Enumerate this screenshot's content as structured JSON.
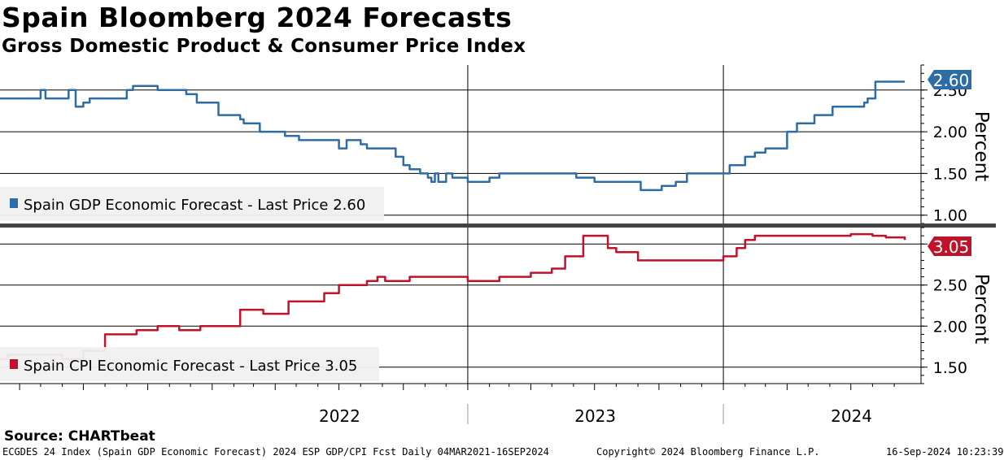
{
  "header": {
    "title": "Spain Bloomberg 2024 Forecasts",
    "subtitle": "Gross Domestic Product & Consumer Price Index"
  },
  "footer": {
    "source": "Source: CHARTbeat",
    "ticker_info": "ECGDES 24 Index (Spain GDP Economic Forecast) 2024 ESP GDP/CPI Fcst  Daily 04MAR2021-16SEP2024",
    "copyright": "Copyright© 2024 Bloomberg Finance L.P.",
    "timestamp": "16-Sep-2024 10:23:39"
  },
  "chart_data": [
    {
      "type": "line",
      "title": "",
      "ylabel": "Percent",
      "ylim": [
        0.9,
        2.8
      ],
      "yticks": [
        "1.00",
        "1.50",
        "2.00",
        "2.50"
      ],
      "legend": "Spain GDP Economic Forecast - Last Price 2.60",
      "legend_position": "bottom-left",
      "last_value_label": "2.60",
      "color": "#2d6ca5",
      "grid": true,
      "series": [
        {
          "name": "Spain GDP Economic Forecast",
          "x": [
            "2021-03-04",
            "2021-05-01",
            "2021-05-08",
            "2021-06-10",
            "2021-06-20",
            "2021-07-01",
            "2021-07-10",
            "2021-09-01",
            "2021-09-10",
            "2021-10-15",
            "2021-11-25",
            "2021-12-10",
            "2022-01-10",
            "2022-02-10",
            "2022-02-15",
            "2022-03-10",
            "2022-04-15",
            "2022-05-05",
            "2022-05-25",
            "2022-06-15",
            "2022-07-01",
            "2022-07-12",
            "2022-08-01",
            "2022-08-10",
            "2022-09-20",
            "2022-10-01",
            "2022-10-10",
            "2022-10-25",
            "2022-10-30",
            "2022-11-05",
            "2022-11-10",
            "2022-11-15",
            "2022-11-20",
            "2022-12-01",
            "2022-12-10",
            "2022-12-20",
            "2023-01-01",
            "2023-01-10",
            "2023-01-20",
            "2023-02-01",
            "2023-02-05",
            "2023-02-15",
            "2023-03-01",
            "2023-05-01",
            "2023-06-01",
            "2023-06-05",
            "2023-07-01",
            "2023-07-15",
            "2023-09-05",
            "2023-10-05",
            "2023-10-25",
            "2023-11-10",
            "2023-11-20",
            "2023-12-10",
            "2024-01-10",
            "2024-01-20",
            "2024-02-01",
            "2024-02-15",
            "2024-03-01",
            "2024-04-01",
            "2024-04-15",
            "2024-05-10",
            "2024-06-05",
            "2024-06-20",
            "2024-07-05",
            "2024-07-20",
            "2024-07-25",
            "2024-08-05",
            "2024-09-16"
          ],
          "values": [
            2.4,
            2.5,
            2.4,
            2.5,
            2.3,
            2.35,
            2.4,
            2.5,
            2.55,
            2.5,
            2.45,
            2.35,
            2.2,
            2.15,
            2.1,
            2.0,
            1.95,
            1.9,
            1.9,
            1.9,
            1.8,
            1.9,
            1.85,
            1.8,
            1.7,
            1.6,
            1.55,
            1.5,
            1.5,
            1.45,
            1.4,
            1.5,
            1.4,
            1.5,
            1.45,
            1.45,
            1.4,
            1.4,
            1.4,
            1.45,
            1.45,
            1.5,
            1.5,
            1.5,
            1.5,
            1.45,
            1.4,
            1.4,
            1.3,
            1.35,
            1.4,
            1.5,
            1.5,
            1.5,
            1.6,
            1.6,
            1.7,
            1.75,
            1.8,
            2.0,
            2.1,
            2.2,
            2.3,
            2.3,
            2.3,
            2.35,
            2.4,
            2.6,
            2.6
          ]
        }
      ]
    },
    {
      "type": "line",
      "title": "",
      "ylabel": "Percent",
      "ylim": [
        1.3,
        3.2
      ],
      "yticks": [
        "1.50",
        "2.00",
        "2.50"
      ],
      "legend": "Spain CPI Economic Forecast - Last Price 3.05",
      "legend_position": "bottom-left",
      "last_value_label": "3.05",
      "color": "#c0122b",
      "grid": true,
      "series": [
        {
          "name": "Spain CPI Economic Forecast",
          "x": [
            "2021-03-04",
            "2021-03-15",
            "2021-05-01",
            "2021-06-01",
            "2021-07-01",
            "2021-08-01",
            "2021-08-20",
            "2021-09-15",
            "2021-10-15",
            "2021-11-15",
            "2021-12-15",
            "2022-02-10",
            "2022-02-20",
            "2022-03-15",
            "2022-04-20",
            "2022-05-15",
            "2022-06-10",
            "2022-07-01",
            "2022-07-15",
            "2022-08-10",
            "2022-08-25",
            "2022-09-05",
            "2022-10-10",
            "2022-10-25",
            "2022-11-05",
            "2022-12-10",
            "2023-01-01",
            "2023-02-15",
            "2023-03-01",
            "2023-04-01",
            "2023-05-01",
            "2023-05-20",
            "2023-06-15",
            "2023-07-01",
            "2023-07-20",
            "2023-08-01",
            "2023-09-01",
            "2023-10-20",
            "2023-11-01",
            "2023-12-01",
            "2024-01-01",
            "2024-01-20",
            "2024-02-01",
            "2024-02-15",
            "2024-04-01",
            "2024-05-01",
            "2024-06-01",
            "2024-07-01",
            "2024-08-01",
            "2024-08-20",
            "2024-09-16"
          ],
          "values": [
            1.6,
            1.65,
            1.65,
            1.6,
            1.7,
            1.9,
            1.9,
            1.95,
            2.0,
            1.95,
            2.0,
            2.2,
            2.2,
            2.15,
            2.3,
            2.3,
            2.4,
            2.5,
            2.5,
            2.55,
            2.6,
            2.55,
            2.6,
            2.6,
            2.6,
            2.6,
            2.55,
            2.6,
            2.6,
            2.65,
            2.7,
            2.85,
            3.1,
            3.1,
            2.95,
            2.9,
            2.8,
            2.8,
            2.8,
            2.8,
            2.85,
            2.95,
            3.05,
            3.1,
            3.1,
            3.1,
            3.1,
            3.12,
            3.1,
            3.08,
            3.05
          ]
        }
      ]
    }
  ],
  "x_axis": {
    "labels": [
      {
        "text": "2022",
        "date": "2022-07-02"
      },
      {
        "text": "2023",
        "date": "2023-07-02"
      },
      {
        "text": "2024",
        "date": "2024-07-02"
      }
    ],
    "year_boundaries": [
      "2023-01-01",
      "2024-01-01"
    ],
    "start": "2021-03-04",
    "end": "2024-09-16"
  }
}
